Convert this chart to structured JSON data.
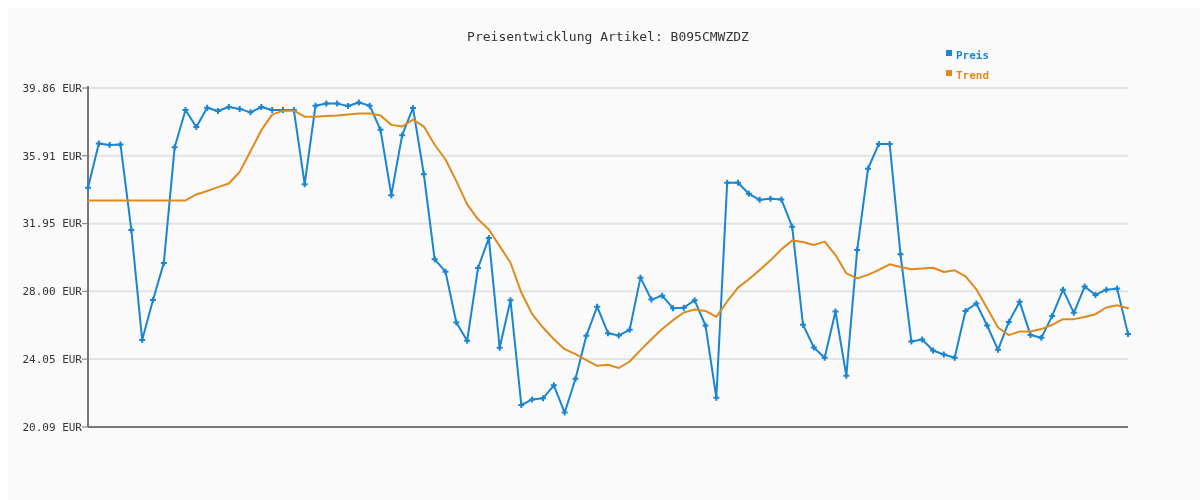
{
  "chart_data": {
    "type": "line",
    "title": "Preisentwicklung Artikel: B095CMWZDZ",
    "categories": [
      null,
      null,
      null,
      null,
      null,
      null,
      null,
      null,
      null,
      null,
      null,
      null,
      null,
      null,
      null,
      null,
      null,
      null,
      null,
      null,
      null,
      null,
      null,
      null,
      null,
      null,
      null,
      null,
      null,
      null,
      null,
      null,
      null,
      null,
      null,
      null,
      null,
      null,
      null,
      null,
      null,
      null,
      null,
      null,
      null,
      null,
      null,
      null,
      null,
      null,
      null,
      null,
      null,
      null,
      null,
      null,
      null,
      null,
      null,
      null,
      null,
      null,
      null,
      null,
      null,
      null,
      null,
      null,
      null,
      null,
      null,
      null,
      null,
      null,
      null,
      null,
      null,
      null,
      null,
      null,
      null,
      null,
      null,
      null,
      null,
      null,
      null,
      null,
      null,
      null,
      null,
      null,
      null,
      null,
      null,
      null,
      null
    ],
    "ylim": [
      20.09,
      39.86
    ],
    "yticks": [
      {
        "value": 20.09,
        "label": "20.09 EUR"
      },
      {
        "value": 24.05,
        "label": "24.05 EUR"
      },
      {
        "value": 28,
        "label": "28.00 EUR"
      },
      {
        "value": 31.95,
        "label": "31.95 EUR"
      },
      {
        "value": 35.91,
        "label": "35.91 EUR"
      },
      {
        "value": 39.86,
        "label": "39.86 EUR"
      }
    ],
    "grid": "y",
    "legend": "top right",
    "tick_labels": "y",
    "series": [
      {
        "name": "Preis",
        "color": "#1a85d0",
        "marker": "cross",
        "values": [
          34.04,
          36.62,
          36.54,
          36.56,
          31.58,
          25.17,
          27.5,
          29.66,
          36.41,
          38.58,
          37.59,
          38.71,
          38.52,
          38.75,
          38.64,
          38.44,
          38.75,
          38.58,
          38.58,
          38.58,
          34.25,
          38.83,
          38.95,
          38.95,
          38.81,
          39.01,
          38.83,
          37.42,
          33.61,
          37.11,
          38.7,
          34.83,
          29.87,
          29.15,
          26.18,
          25.12,
          29.36,
          31.11,
          24.71,
          27.48,
          21.37,
          21.7,
          21.76,
          22.52,
          20.93,
          22.9,
          25.41,
          27.11,
          25.56,
          25.43,
          25.76,
          28.8,
          27.52,
          27.75,
          27.02,
          27.05,
          27.48,
          26.01,
          21.8,
          34.33,
          34.33,
          33.69,
          33.34,
          33.4,
          33.36,
          31.77,
          26.05,
          24.73,
          24.13,
          26.82,
          23.08,
          30.41,
          35.15,
          36.6,
          36.6,
          30.16,
          25.08,
          25.19,
          24.55,
          24.32,
          24.13,
          26.86,
          27.29,
          26.01,
          24.59,
          26.22,
          27.39,
          25.45,
          25.29,
          26.57,
          28.1,
          26.75,
          28.28,
          27.79,
          28.1,
          28.16,
          25.52
        ]
      },
      {
        "name": "Trend",
        "color": "#e08a1e",
        "marker": "none",
        "values": [
          33.3,
          33.3,
          33.3,
          33.3,
          33.3,
          33.3,
          33.3,
          33.3,
          33.3,
          33.3,
          33.65,
          33.85,
          34.08,
          34.29,
          34.97,
          36.17,
          37.4,
          38.31,
          38.54,
          38.54,
          38.19,
          38.19,
          38.23,
          38.25,
          38.31,
          38.37,
          38.37,
          38.25,
          37.71,
          37.61,
          38.02,
          37.61,
          36.55,
          35.69,
          34.43,
          33.07,
          32.2,
          31.61,
          30.64,
          29.67,
          27.93,
          26.67,
          25.89,
          25.21,
          24.63,
          24.34,
          23.99,
          23.66,
          23.72,
          23.53,
          23.91,
          24.57,
          25.21,
          25.8,
          26.32,
          26.77,
          26.94,
          26.86,
          26.51,
          27.41,
          28.22,
          28.71,
          29.25,
          29.81,
          30.45,
          30.97,
          30.88,
          30.7,
          30.9,
          30.12,
          29.05,
          28.76,
          28.96,
          29.25,
          29.58,
          29.42,
          29.29,
          29.33,
          29.38,
          29.13,
          29.23,
          28.88,
          28.12,
          27.02,
          25.89,
          25.45,
          25.66,
          25.66,
          25.8,
          26.05,
          26.38,
          26.38,
          26.51,
          26.67,
          27.06,
          27.19,
          27.02
        ]
      }
    ]
  }
}
